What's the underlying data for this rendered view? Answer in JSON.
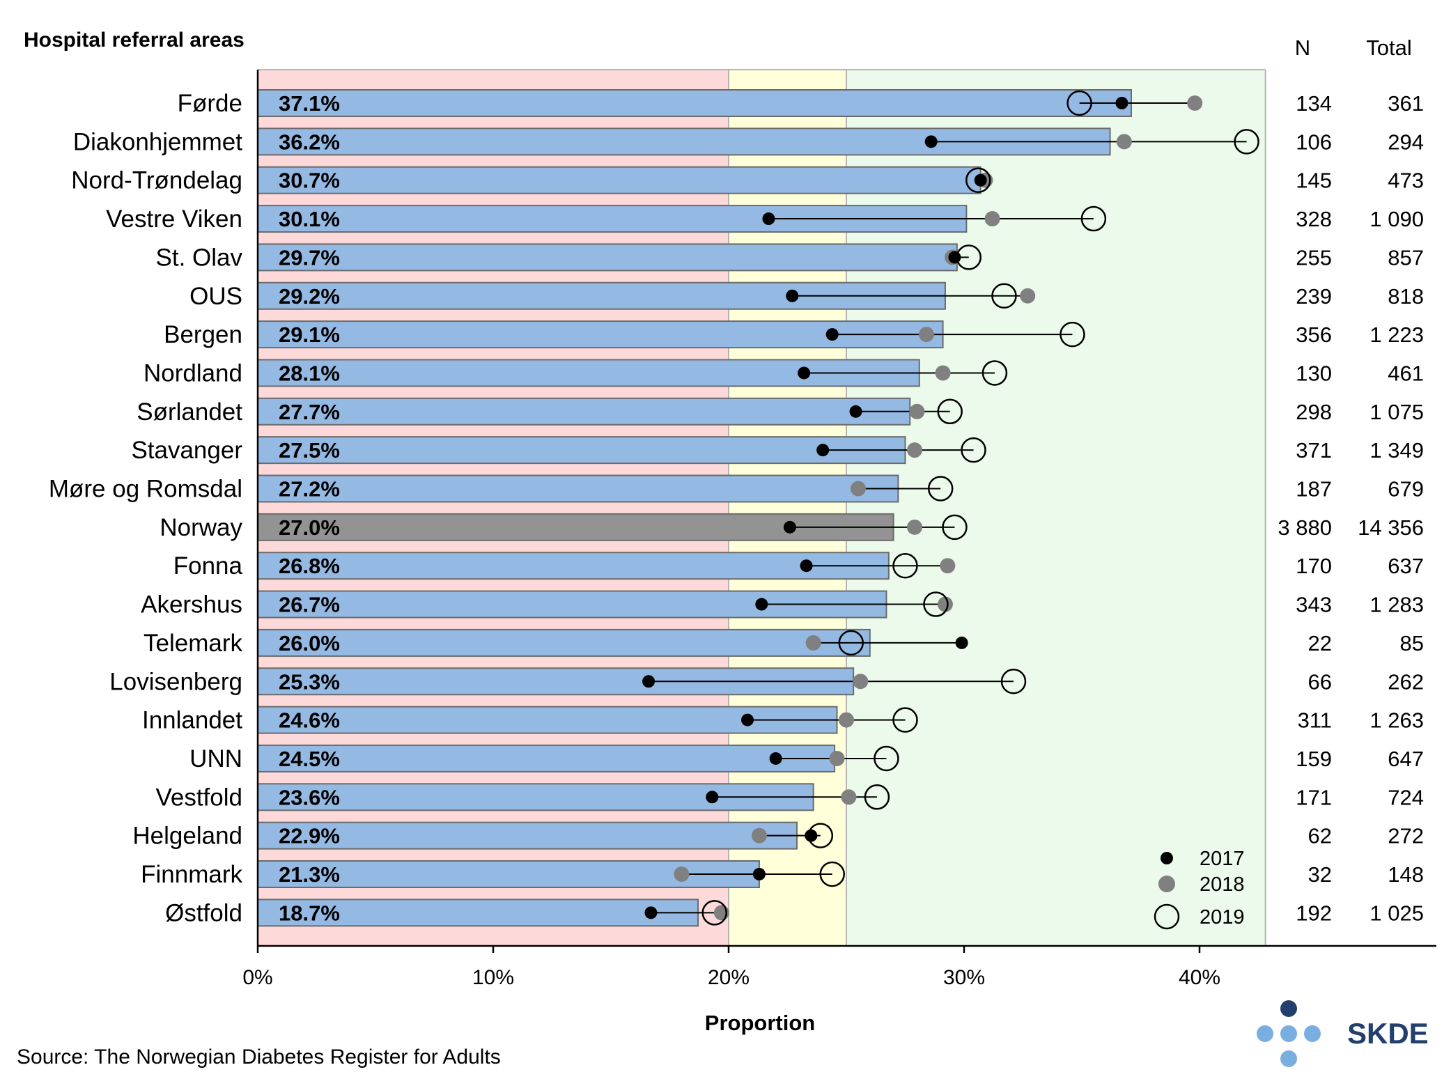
{
  "chart_data": {
    "type": "bar",
    "title": "Hospital referral areas",
    "xlabel": "Proportion",
    "ylabel": "",
    "xlim": [
      0,
      0.5
    ],
    "x_ticks": [
      0,
      0.1,
      0.2,
      0.3,
      0.4
    ],
    "x_tick_labels": [
      "0%",
      "10%",
      "20%",
      "30%",
      "40%"
    ],
    "bands": [
      {
        "from": 0,
        "to": 0.2,
        "color": "#fdd9d9"
      },
      {
        "from": 0.2,
        "to": 0.25,
        "color": "#ffffd9"
      },
      {
        "from": 0.25,
        "to": 0.428,
        "color": "#ebfaea"
      }
    ],
    "col_headers": {
      "n": "N",
      "total": "Total"
    },
    "legend": [
      {
        "name": "2017",
        "style": "black-dot"
      },
      {
        "name": "2018",
        "style": "grey-dot"
      },
      {
        "name": "2019",
        "style": "open-circle"
      }
    ],
    "legend_position": "bottom-right",
    "source": "Source: The Norwegian Diabetes Register for Adults",
    "logo_text": "SKDE",
    "colors": {
      "bar": "#94b9e3",
      "national_bar": "#939393",
      "y2018": "#808080",
      "logo": "#233f6e",
      "logo_light": "#79aee0"
    },
    "categories": [
      {
        "name": "Førde",
        "label": "37.1%",
        "value": 0.371,
        "y2017": 0.367,
        "y2018": 0.398,
        "y2019": 0.349,
        "n": "134",
        "total": "361"
      },
      {
        "name": "Diakonhjemmet",
        "label": "36.2%",
        "value": 0.362,
        "y2017": 0.286,
        "y2018": 0.368,
        "y2019": 0.42,
        "n": "106",
        "total": "294"
      },
      {
        "name": "Nord-Trøndelag",
        "label": "30.7%",
        "value": 0.307,
        "y2017": 0.307,
        "y2018": 0.309,
        "y2019": 0.306,
        "n": "145",
        "total": "473"
      },
      {
        "name": "Vestre Viken",
        "label": "30.1%",
        "value": 0.301,
        "y2017": 0.217,
        "y2018": 0.312,
        "y2019": 0.355,
        "n": "328",
        "total": "1 090"
      },
      {
        "name": "St. Olav",
        "label": "29.7%",
        "value": 0.297,
        "y2017": 0.296,
        "y2018": 0.295,
        "y2019": 0.302,
        "n": "255",
        "total": "857"
      },
      {
        "name": "OUS",
        "label": "29.2%",
        "value": 0.292,
        "y2017": 0.227,
        "y2018": 0.327,
        "y2019": 0.317,
        "n": "239",
        "total": "818"
      },
      {
        "name": "Bergen",
        "label": "29.1%",
        "value": 0.291,
        "y2017": 0.244,
        "y2018": 0.284,
        "y2019": 0.346,
        "n": "356",
        "total": "1 223"
      },
      {
        "name": "Nordland",
        "label": "28.1%",
        "value": 0.281,
        "y2017": 0.232,
        "y2018": 0.291,
        "y2019": 0.313,
        "n": "130",
        "total": "461"
      },
      {
        "name": "Sørlandet",
        "label": "27.7%",
        "value": 0.277,
        "y2017": 0.254,
        "y2018": 0.28,
        "y2019": 0.294,
        "n": "298",
        "total": "1 075"
      },
      {
        "name": "Stavanger",
        "label": "27.5%",
        "value": 0.275,
        "y2017": 0.24,
        "y2018": 0.279,
        "y2019": 0.304,
        "n": "371",
        "total": "1 349"
      },
      {
        "name": "Møre og Romsdal",
        "label": "27.2%",
        "value": 0.272,
        "y2017": null,
        "y2018": 0.255,
        "y2019": 0.29,
        "n": "187",
        "total": "679"
      },
      {
        "name": "Norway",
        "label": "27.0%",
        "value": 0.27,
        "y2017": 0.226,
        "y2018": 0.279,
        "y2019": 0.296,
        "n": "3 880",
        "total": "14 356",
        "national": true
      },
      {
        "name": "Fonna",
        "label": "26.8%",
        "value": 0.268,
        "y2017": 0.233,
        "y2018": 0.293,
        "y2019": 0.275,
        "n": "170",
        "total": "637"
      },
      {
        "name": "Akershus",
        "label": "26.7%",
        "value": 0.267,
        "y2017": 0.214,
        "y2018": 0.292,
        "y2019": 0.288,
        "n": "343",
        "total": "1 283"
      },
      {
        "name": "Telemark",
        "label": "26.0%",
        "value": 0.26,
        "y2017": 0.299,
        "y2018": 0.236,
        "y2019": 0.252,
        "n": "22",
        "total": "85"
      },
      {
        "name": "Lovisenberg",
        "label": "25.3%",
        "value": 0.253,
        "y2017": 0.166,
        "y2018": 0.256,
        "y2019": 0.321,
        "n": "66",
        "total": "262"
      },
      {
        "name": "Innlandet",
        "label": "24.6%",
        "value": 0.246,
        "y2017": 0.208,
        "y2018": 0.25,
        "y2019": 0.275,
        "n": "311",
        "total": "1 263"
      },
      {
        "name": "UNN",
        "label": "24.5%",
        "value": 0.245,
        "y2017": 0.22,
        "y2018": 0.246,
        "y2019": 0.267,
        "n": "159",
        "total": "647"
      },
      {
        "name": "Vestfold",
        "label": "23.6%",
        "value": 0.236,
        "y2017": 0.193,
        "y2018": 0.251,
        "y2019": 0.263,
        "n": "171",
        "total": "724"
      },
      {
        "name": "Helgeland",
        "label": "22.9%",
        "value": 0.229,
        "y2017": 0.235,
        "y2018": 0.213,
        "y2019": 0.239,
        "n": "62",
        "total": "272"
      },
      {
        "name": "Finnmark",
        "label": "21.3%",
        "value": 0.213,
        "y2017": 0.213,
        "y2018": 0.18,
        "y2019": 0.244,
        "n": "32",
        "total": "148"
      },
      {
        "name": "Østfold",
        "label": "18.7%",
        "value": 0.187,
        "y2017": 0.167,
        "y2018": 0.197,
        "y2019": 0.194,
        "n": "192",
        "total": "1 025"
      }
    ]
  }
}
